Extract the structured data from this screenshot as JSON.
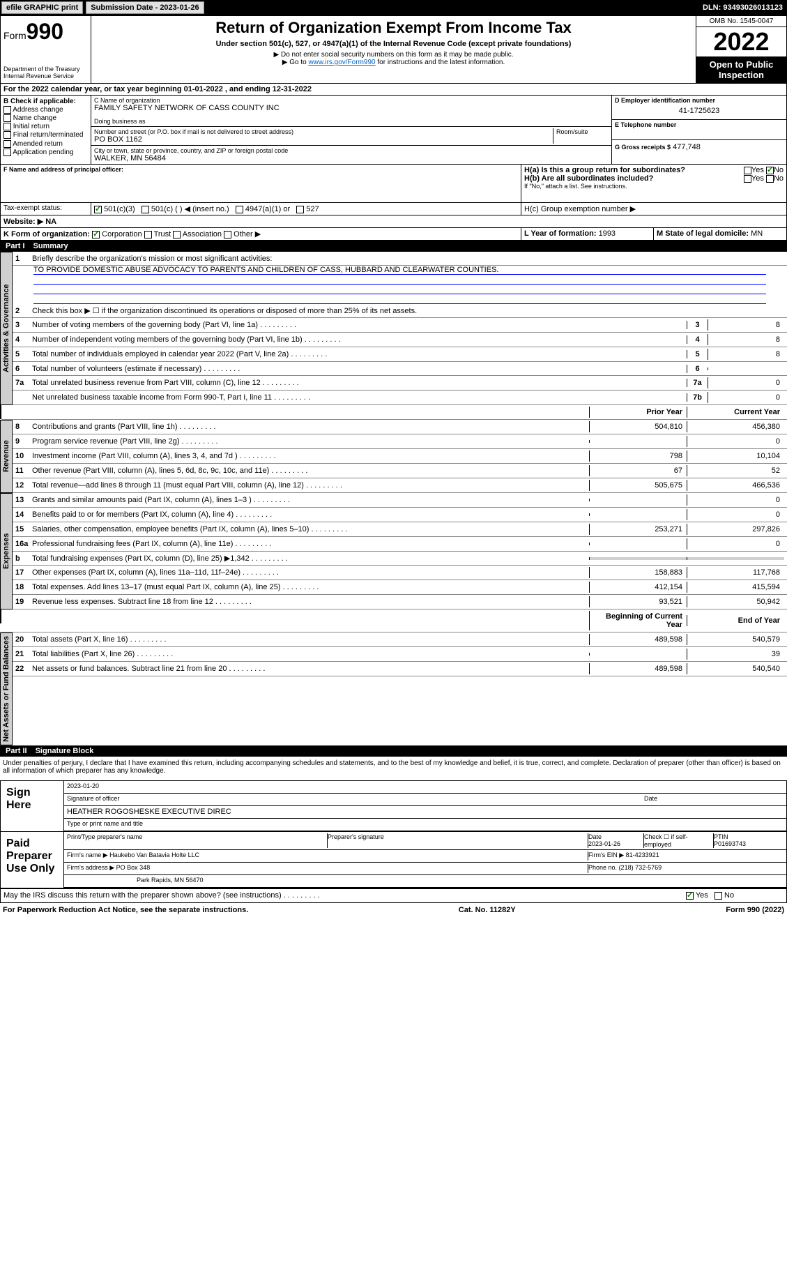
{
  "topbar": {
    "efile": "efile GRAPHIC print",
    "submission_label": "Submission Date - 2023-01-26",
    "dln": "DLN: 93493026013123"
  },
  "header": {
    "form_prefix": "Form",
    "form_num": "990",
    "dept": "Department of the Treasury",
    "irs": "Internal Revenue Service",
    "title": "Return of Organization Exempt From Income Tax",
    "subtitle": "Under section 501(c), 527, or 4947(a)(1) of the Internal Revenue Code (except private foundations)",
    "note1": "▶ Do not enter social security numbers on this form as it may be made public.",
    "note2_pre": "▶ Go to ",
    "note2_link": "www.irs.gov/Form990",
    "note2_post": " for instructions and the latest information.",
    "omb": "OMB No. 1545-0047",
    "year": "2022",
    "open": "Open to Public Inspection"
  },
  "period": {
    "text": "For the 2022 calendar year, or tax year beginning 01-01-2022   , and ending 12-31-2022"
  },
  "sectionB": {
    "label": "B Check if applicable:",
    "opts": [
      "Address change",
      "Name change",
      "Initial return",
      "Final return/terminated",
      "Amended return",
      "Application pending"
    ]
  },
  "sectionC": {
    "label": "C Name of organization",
    "name": "FAMILY SAFETY NETWORK OF CASS COUNTY INC",
    "dba_label": "Doing business as",
    "addr_label": "Number and street (or P.O. box if mail is not delivered to street address)",
    "room_label": "Room/suite",
    "addr": "PO BOX 1162",
    "city_label": "City or town, state or province, country, and ZIP or foreign postal code",
    "city": "WALKER, MN  56484"
  },
  "sectionD": {
    "label": "D Employer identification number",
    "ein": "41-1725623"
  },
  "sectionE": {
    "label": "E Telephone number",
    "phone": ""
  },
  "sectionG": {
    "label": "G Gross receipts $",
    "amount": "477,748"
  },
  "sectionF": {
    "label": "F Name and address of principal officer:"
  },
  "sectionH": {
    "ha": "H(a)  Is this a group return for subordinates?",
    "hb": "H(b)  Are all subordinates included?",
    "hb_note": "If \"No,\" attach a list. See instructions.",
    "hc": "H(c)  Group exemption number ▶",
    "yes": "Yes",
    "no": "No"
  },
  "sectionI": {
    "label": "Tax-exempt status:",
    "opts": [
      "501(c)(3)",
      "501(c) (   ) ◀ (insert no.)",
      "4947(a)(1) or",
      "527"
    ]
  },
  "sectionJ": {
    "label": "Website: ▶",
    "val": "NA"
  },
  "sectionK": {
    "label": "K Form of organization:",
    "opts": [
      "Corporation",
      "Trust",
      "Association",
      "Other ▶"
    ]
  },
  "sectionL": {
    "label": "L Year of formation:",
    "val": "1993"
  },
  "sectionM": {
    "label": "M State of legal domicile:",
    "val": "MN"
  },
  "partI": {
    "num": "Part I",
    "title": "Summary",
    "l1": "Briefly describe the organization's mission or most significant activities:",
    "mission": "TO PROVIDE DOMESTIC ABUSE ADVOCACY TO PARENTS AND CHILDREN OF CASS, HUBBARD AND CLEARWATER COUNTIES.",
    "l2": "Check this box ▶ ☐  if the organization discontinued its operations or disposed of more than 25% of its net assets.",
    "lines_gov": [
      {
        "n": "3",
        "t": "Number of voting members of the governing body (Part VI, line 1a)",
        "box": "3",
        "v": "8"
      },
      {
        "n": "4",
        "t": "Number of independent voting members of the governing body (Part VI, line 1b)",
        "box": "4",
        "v": "8"
      },
      {
        "n": "5",
        "t": "Total number of individuals employed in calendar year 2022 (Part V, line 2a)",
        "box": "5",
        "v": "8"
      },
      {
        "n": "6",
        "t": "Total number of volunteers (estimate if necessary)",
        "box": "6",
        "v": ""
      },
      {
        "n": "7a",
        "t": "Total unrelated business revenue from Part VIII, column (C), line 12",
        "box": "7a",
        "v": "0"
      },
      {
        "n": "",
        "t": "Net unrelated business taxable income from Form 990-T, Part I, line 11",
        "box": "7b",
        "v": "0"
      }
    ],
    "col_prior": "Prior Year",
    "col_current": "Current Year",
    "lines_rev": [
      {
        "n": "8",
        "t": "Contributions and grants (Part VIII, line 1h)",
        "p": "504,810",
        "c": "456,380"
      },
      {
        "n": "9",
        "t": "Program service revenue (Part VIII, line 2g)",
        "p": "",
        "c": "0"
      },
      {
        "n": "10",
        "t": "Investment income (Part VIII, column (A), lines 3, 4, and 7d )",
        "p": "798",
        "c": "10,104"
      },
      {
        "n": "11",
        "t": "Other revenue (Part VIII, column (A), lines 5, 6d, 8c, 9c, 10c, and 11e)",
        "p": "67",
        "c": "52"
      },
      {
        "n": "12",
        "t": "Total revenue—add lines 8 through 11 (must equal Part VIII, column (A), line 12)",
        "p": "505,675",
        "c": "466,536"
      }
    ],
    "lines_exp": [
      {
        "n": "13",
        "t": "Grants and similar amounts paid (Part IX, column (A), lines 1–3 )",
        "p": "",
        "c": "0"
      },
      {
        "n": "14",
        "t": "Benefits paid to or for members (Part IX, column (A), line 4)",
        "p": "",
        "c": "0"
      },
      {
        "n": "15",
        "t": "Salaries, other compensation, employee benefits (Part IX, column (A), lines 5–10)",
        "p": "253,271",
        "c": "297,826"
      },
      {
        "n": "16a",
        "t": "Professional fundraising fees (Part IX, column (A), line 11e)",
        "p": "",
        "c": "0"
      },
      {
        "n": "b",
        "t": "Total fundraising expenses (Part IX, column (D), line 25) ▶1,342",
        "p": "grey",
        "c": "grey"
      },
      {
        "n": "17",
        "t": "Other expenses (Part IX, column (A), lines 11a–11d, 11f–24e)",
        "p": "158,883",
        "c": "117,768"
      },
      {
        "n": "18",
        "t": "Total expenses. Add lines 13–17 (must equal Part IX, column (A), line 25)",
        "p": "412,154",
        "c": "415,594"
      },
      {
        "n": "19",
        "t": "Revenue less expenses. Subtract line 18 from line 12",
        "p": "93,521",
        "c": "50,942"
      }
    ],
    "col_begin": "Beginning of Current Year",
    "col_end": "End of Year",
    "lines_net": [
      {
        "n": "20",
        "t": "Total assets (Part X, line 16)",
        "p": "489,598",
        "c": "540,579"
      },
      {
        "n": "21",
        "t": "Total liabilities (Part X, line 26)",
        "p": "",
        "c": "39"
      },
      {
        "n": "22",
        "t": "Net assets or fund balances. Subtract line 21 from line 20",
        "p": "489,598",
        "c": "540,540"
      }
    ],
    "tabs": {
      "gov": "Activities & Governance",
      "rev": "Revenue",
      "exp": "Expenses",
      "net": "Net Assets or Fund Balances"
    }
  },
  "partII": {
    "num": "Part II",
    "title": "Signature Block",
    "decl": "Under penalties of perjury, I declare that I have examined this return, including accompanying schedules and statements, and to the best of my knowledge and belief, it is true, correct, and complete. Declaration of preparer (other than officer) is based on all information of which preparer has any knowledge.",
    "sign_here": "Sign Here",
    "sig_officer": "Signature of officer",
    "date_label": "Date",
    "sig_date": "2023-01-20",
    "officer_name": "HEATHER ROGOSHESKE EXECUTIVE DIREC",
    "type_name": "Type or print name and title",
    "paid": "Paid Preparer Use Only",
    "prep_name_label": "Print/Type preparer's name",
    "prep_sig_label": "Preparer's signature",
    "prep_date_label": "Date",
    "prep_date": "2023-01-26",
    "check_self": "Check ☐ if self-employed",
    "ptin_label": "PTIN",
    "ptin": "P01693743",
    "firm_name_label": "Firm's name   ▶",
    "firm_name": "Haukebo Van Batavia Holte LLC",
    "firm_ein_label": "Firm's EIN ▶",
    "firm_ein": "81-4233921",
    "firm_addr_label": "Firm's address ▶",
    "firm_addr": "PO Box 348",
    "firm_city": "Park Rapids, MN  56470",
    "firm_phone_label": "Phone no.",
    "firm_phone": "(218) 732-5769",
    "discuss": "May the IRS discuss this return with the preparer shown above? (see instructions)",
    "yes": "Yes",
    "no": "No"
  },
  "footer": {
    "left": "For Paperwork Reduction Act Notice, see the separate instructions.",
    "mid": "Cat. No. 11282Y",
    "right": "Form 990 (2022)"
  }
}
